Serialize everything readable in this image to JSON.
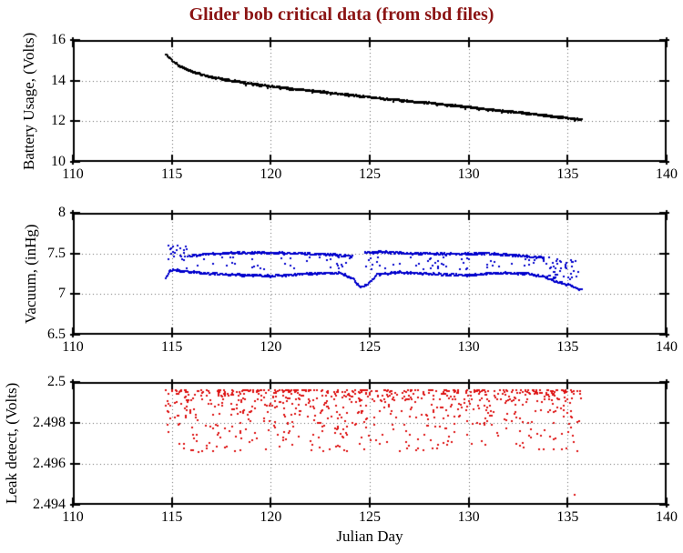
{
  "title": "Glider bob critical data (from sbd files)",
  "title_color": "#8b1414",
  "xlabel": "Julian Day",
  "axis_color": "#000000",
  "grid_color": "#666666",
  "background": "#ffffff",
  "chart_data": [
    {
      "type": "scatter",
      "name": "battery-usage",
      "ylabel": "Battery Usage, (Volts)",
      "color": "#000000",
      "xlim": [
        110,
        140
      ],
      "ylim": [
        10,
        16
      ],
      "xticks": [
        110,
        115,
        120,
        125,
        130,
        135,
        140
      ],
      "xtick_labels": [
        "110",
        "115",
        "120",
        "125",
        "130",
        "135",
        "140"
      ],
      "yticks": [
        10,
        12,
        14,
        16
      ],
      "ytick_labels": [
        "10",
        "12",
        "14",
        "16"
      ],
      "grid": true,
      "x_data_range": [
        114.7,
        135.7
      ],
      "series": [
        {
          "kind": "trend-band",
          "seed": 11,
          "n": 1000,
          "x0": 114.7,
          "x1": 135.7,
          "knots_x": [
            114.7,
            115.0,
            115.4,
            116.0,
            116.8,
            117.6,
            118.5,
            119.5,
            120.5,
            121.5,
            122.5,
            124.0,
            125.5,
            127.0,
            128.5,
            130.0,
            131.5,
            133.0,
            134.5,
            135.7
          ],
          "knots_y": [
            15.3,
            15.0,
            14.72,
            14.45,
            14.22,
            14.06,
            13.92,
            13.78,
            13.66,
            13.56,
            13.46,
            13.29,
            13.13,
            12.99,
            12.85,
            12.69,
            12.53,
            12.38,
            12.22,
            12.08
          ],
          "jitter": 0.04,
          "fuzz": {
            "chance": 0.06,
            "min": 0.02,
            "max": 0.08,
            "after_x": 116.5
          },
          "marker": 2
        }
      ]
    },
    {
      "type": "scatter",
      "name": "vacuum",
      "ylabel": "Vacuum, (inHg)",
      "color": "#0000cc",
      "xlim": [
        110,
        140
      ],
      "ylim": [
        6.5,
        8
      ],
      "xticks": [
        110,
        115,
        120,
        125,
        130,
        135,
        140
      ],
      "xtick_labels": [
        "110",
        "115",
        "120",
        "125",
        "130",
        "135",
        "140"
      ],
      "yticks": [
        6.5,
        7,
        7.5,
        8
      ],
      "ytick_labels": [
        "6.5",
        "7",
        "7.5",
        "8"
      ],
      "grid": true,
      "x_data_range": [
        114.7,
        135.7
      ],
      "series": [
        {
          "kind": "trend-band",
          "seed": 21,
          "n": 540,
          "x0": 114.7,
          "x1": 135.7,
          "knots_x": [
            114.7,
            114.85,
            115.1,
            115.6,
            116.5,
            118.0,
            120.0,
            122.0,
            123.5,
            124.2,
            124.5,
            124.9,
            125.4,
            126.5,
            128.0,
            130.0,
            131.5,
            133.0,
            133.8,
            134.5,
            135.2,
            135.7
          ],
          "knots_y": [
            7.2,
            7.27,
            7.3,
            7.28,
            7.26,
            7.24,
            7.22,
            7.25,
            7.26,
            7.19,
            7.08,
            7.12,
            7.24,
            7.27,
            7.25,
            7.23,
            7.26,
            7.25,
            7.21,
            7.15,
            7.1,
            7.05
          ],
          "jitter": 0.013,
          "marker": 2
        },
        {
          "kind": "trend-band",
          "seed": 22,
          "n": 460,
          "x0": 115.9,
          "x1": 133.8,
          "knots_x": [
            115.9,
            117.0,
            119.0,
            121.0,
            123.0,
            124.1,
            124.8,
            125.6,
            127.0,
            129.0,
            131.0,
            132.5,
            133.8
          ],
          "knots_y": [
            7.47,
            7.5,
            7.51,
            7.5,
            7.49,
            7.46,
            7.51,
            7.52,
            7.5,
            7.49,
            7.5,
            7.47,
            7.45
          ],
          "jitter": 0.013,
          "gaps": [
            [
              124.15,
              124.75
            ]
          ],
          "marker": 2
        },
        {
          "kind": "scatter-uniform",
          "seed": 23,
          "n": 24,
          "x0": 114.75,
          "x1": 115.8,
          "y0": 7.42,
          "y1": 7.6,
          "marker": 2
        },
        {
          "kind": "scatter-uniform",
          "seed": 24,
          "n": 95,
          "x0": 115.3,
          "x1": 135.3,
          "y0": 7.3,
          "y1": 7.46,
          "marker": 2
        },
        {
          "kind": "scatter-uniform",
          "seed": 25,
          "n": 32,
          "x0": 133.9,
          "x1": 135.6,
          "y0": 7.18,
          "y1": 7.42,
          "marker": 2
        }
      ]
    },
    {
      "type": "scatter",
      "name": "leak-detect",
      "ylabel": "Leak detect, (Volts)",
      "color": "#dd1111",
      "xlim": [
        110,
        140
      ],
      "ylim": [
        2.494,
        2.5
      ],
      "xticks": [
        110,
        115,
        120,
        125,
        130,
        135,
        140
      ],
      "xtick_labels": [
        "110",
        "115",
        "120",
        "125",
        "130",
        "135",
        "140"
      ],
      "yticks": [
        2.494,
        2.496,
        2.498,
        2.5
      ],
      "ytick_labels": [
        "2.494",
        "2.496",
        "2.498",
        "2.5"
      ],
      "grid": true,
      "x_data_range": [
        114.7,
        135.7
      ],
      "series": [
        {
          "kind": "scatter-power",
          "seed": 31,
          "n": 820,
          "x0": 114.7,
          "x1": 135.7,
          "y_top": 2.4996,
          "depth": 0.003,
          "power": 2.6,
          "out_chance": 0.02,
          "out_extra": 0.0012,
          "y_min": 2.4951,
          "marker": 2
        },
        {
          "kind": "points",
          "pts": [
            [
              135.35,
              2.4945
            ]
          ],
          "marker": 2
        }
      ]
    }
  ]
}
